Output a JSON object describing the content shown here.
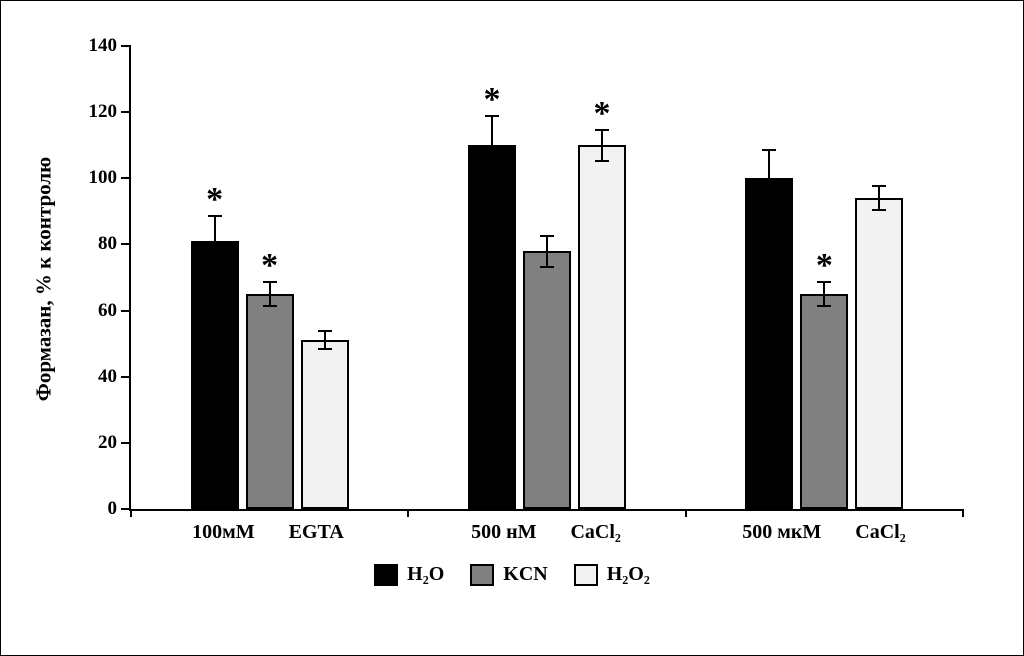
{
  "chart_data": {
    "type": "bar",
    "title": "",
    "ylabel": "Формазан, % к контролю",
    "xlabel": "",
    "ylim": [
      0,
      140
    ],
    "ytick_step": 20,
    "grid": false,
    "legend_position": "bottom-center",
    "categories": [
      "100мМ EGTA",
      "500 нМ CaCl₂",
      "500 мкМ CaCl₂"
    ],
    "category_label_parts": [
      [
        "100мМ",
        "EGTA"
      ],
      [
        "500 нМ",
        "CaCl₂"
      ],
      [
        "500 мкМ",
        "CaCl₂"
      ]
    ],
    "significance_marker": "*",
    "series": [
      {
        "name": "H₂O",
        "color": "#000000",
        "values": [
          81,
          110,
          100
        ],
        "errors": [
          8,
          9,
          9
        ],
        "significant": [
          true,
          true,
          false
        ]
      },
      {
        "name": "KCN",
        "color": "#808080",
        "values": [
          65,
          78,
          65
        ],
        "errors": [
          4,
          5,
          4
        ],
        "significant": [
          true,
          false,
          true
        ]
      },
      {
        "name": "H₂O₂",
        "color": "#f2f2f2",
        "values": [
          51,
          110,
          94
        ],
        "errors": [
          3,
          5,
          4
        ],
        "significant": [
          false,
          true,
          false
        ]
      }
    ],
    "bar_border_color": "#000000",
    "axis_color": "#000000"
  }
}
